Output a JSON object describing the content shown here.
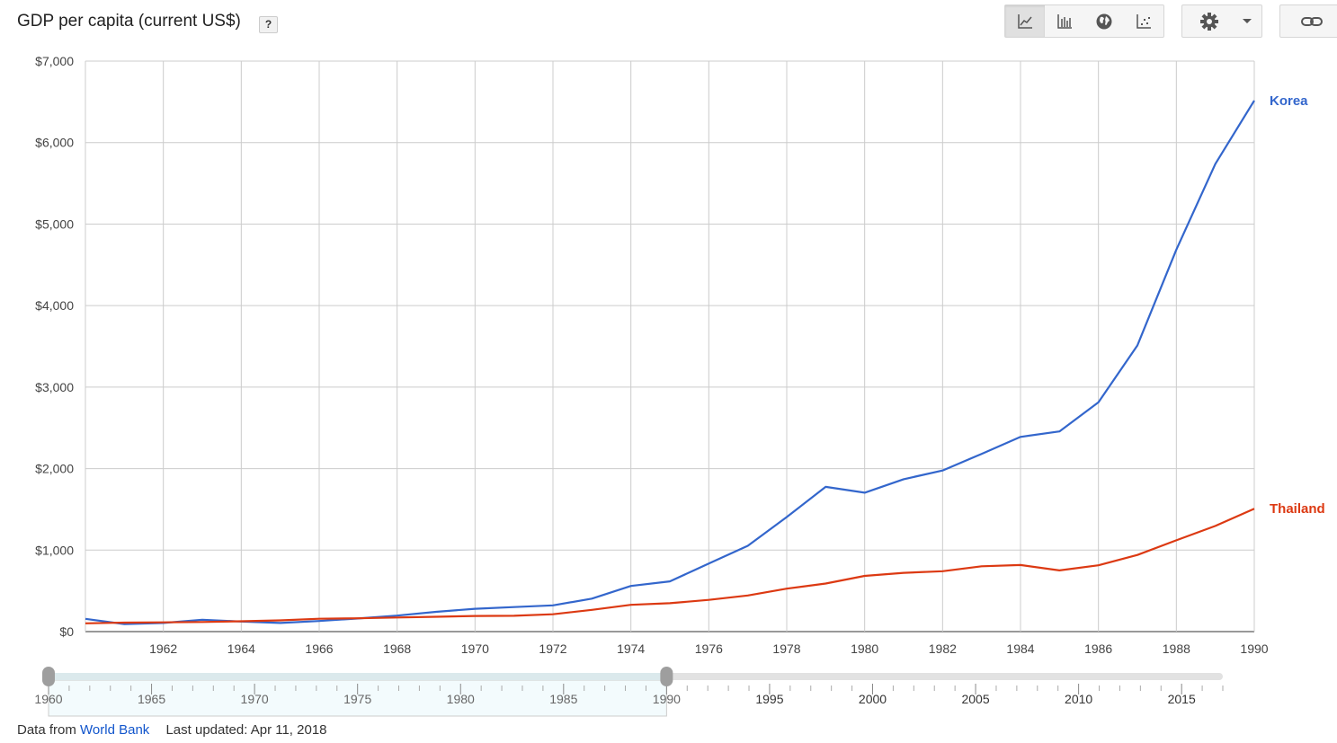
{
  "header": {
    "title": "GDP per capita (current US$)",
    "help_label": "?"
  },
  "toolbar": {
    "views": [
      {
        "icon": "line-chart-icon",
        "active": true
      },
      {
        "icon": "bar-chart-icon",
        "active": false
      },
      {
        "icon": "globe-map-icon",
        "active": false
      },
      {
        "icon": "scatter-chart-icon",
        "active": false
      }
    ],
    "settings_icon": "gear-icon",
    "dropdown_icon": "caret-down-icon",
    "link_icon": "link-icon"
  },
  "chart_data": {
    "type": "line",
    "title": "GDP per capita (current US$)",
    "ylim": [
      0,
      7000
    ],
    "xlim": [
      1960,
      1990
    ],
    "y_ticks": [
      "$0",
      "$1,000",
      "$2,000",
      "$3,000",
      "$4,000",
      "$5,000",
      "$6,000",
      "$7,000"
    ],
    "y_tick_values": [
      0,
      1000,
      2000,
      3000,
      4000,
      5000,
      6000,
      7000
    ],
    "x_ticks": [
      "1962",
      "1964",
      "1966",
      "1968",
      "1970",
      "1972",
      "1974",
      "1976",
      "1978",
      "1980",
      "1982",
      "1984",
      "1986",
      "1988",
      "1990"
    ],
    "x_tick_values": [
      1962,
      1964,
      1966,
      1968,
      1970,
      1972,
      1974,
      1976,
      1978,
      1980,
      1982,
      1984,
      1986,
      1988,
      1990
    ],
    "grid": true,
    "x": [
      1960,
      1961,
      1962,
      1963,
      1964,
      1965,
      1966,
      1967,
      1968,
      1969,
      1970,
      1971,
      1972,
      1973,
      1974,
      1975,
      1976,
      1977,
      1978,
      1979,
      1980,
      1981,
      1982,
      1983,
      1984,
      1985,
      1986,
      1987,
      1988,
      1989,
      1990
    ],
    "series": [
      {
        "name": "Korea",
        "color": "#3366cc",
        "values": [
          156,
          92,
          106,
          146,
          124,
          106,
          130,
          161,
          196,
          243,
          280,
          301,
          322,
          405,
          560,
          616,
          834,
          1053,
          1406,
          1776,
          1704,
          1870,
          1977,
          2180,
          2389,
          2456,
          2813,
          3511,
          4686,
          5739,
          6516
        ]
      },
      {
        "name": "Thailand",
        "color": "#dc3912",
        "values": [
          101,
          110,
          114,
          118,
          127,
          138,
          158,
          163,
          173,
          182,
          192,
          194,
          213,
          267,
          329,
          348,
          389,
          443,
          527,
          590,
          683,
          721,
          741,
          801,
          817,
          751,
          814,
          940,
          1120,
          1296,
          1508
        ]
      }
    ]
  },
  "timeline": {
    "labels": [
      "1960",
      "1965",
      "1970",
      "1975",
      "1980",
      "1985",
      "1990",
      "1995",
      "2000",
      "2005",
      "2010",
      "2015"
    ],
    "label_years": [
      1960,
      1965,
      1970,
      1975,
      1980,
      1985,
      1990,
      1995,
      2000,
      2005,
      2010,
      2015
    ],
    "range": [
      1960,
      2017
    ],
    "selected": [
      1960,
      1990
    ]
  },
  "footer": {
    "source_prefix": "Data from",
    "source_link": "World Bank",
    "updated": "Last updated: Apr 11, 2018"
  }
}
